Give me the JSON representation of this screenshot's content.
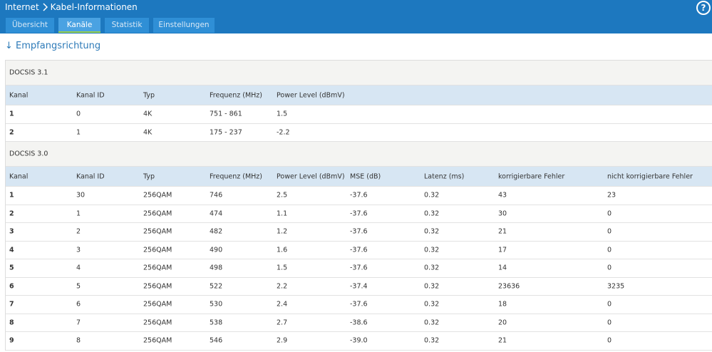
{
  "header": {
    "breadcrumb": [
      "Internet",
      "Kabel-Informationen"
    ],
    "help": "?"
  },
  "tabs": [
    {
      "label": "Übersicht",
      "active": false
    },
    {
      "label": "Kanäle",
      "active": true
    },
    {
      "label": "Statistik",
      "active": false
    },
    {
      "label": "Einstellungen",
      "active": false
    }
  ],
  "section": {
    "title": "Empfangsrichtung"
  },
  "tables": [
    {
      "title": "DOCSIS 3.1",
      "columns": [
        "Kanal",
        "Kanal ID",
        "Typ",
        "Frequenz (MHz)",
        "Power Level (dBmV)"
      ],
      "rows": [
        [
          "1",
          "0",
          "4K",
          "751 - 861",
          "1.5"
        ],
        [
          "2",
          "1",
          "4K",
          "175 - 237",
          "-2.2"
        ]
      ]
    },
    {
      "title": "DOCSIS 3.0",
      "columns": [
        "Kanal",
        "Kanal ID",
        "Typ",
        "Frequenz (MHz)",
        "Power Level (dBmV)",
        "MSE (dB)",
        "Latenz (ms)",
        "korrigierbare Fehler",
        "nicht korrigierbare Fehler"
      ],
      "rows": [
        [
          "1",
          "30",
          "256QAM",
          "746",
          "2.5",
          "-37.6",
          "0.32",
          "43",
          "23"
        ],
        [
          "2",
          "1",
          "256QAM",
          "474",
          "1.1",
          "-37.6",
          "0.32",
          "30",
          "0"
        ],
        [
          "3",
          "2",
          "256QAM",
          "482",
          "1.2",
          "-37.6",
          "0.32",
          "21",
          "0"
        ],
        [
          "4",
          "3",
          "256QAM",
          "490",
          "1.6",
          "-37.6",
          "0.32",
          "17",
          "0"
        ],
        [
          "5",
          "4",
          "256QAM",
          "498",
          "1.5",
          "-37.6",
          "0.32",
          "14",
          "0"
        ],
        [
          "6",
          "5",
          "256QAM",
          "522",
          "2.2",
          "-37.4",
          "0.32",
          "23636",
          "3235"
        ],
        [
          "7",
          "6",
          "256QAM",
          "530",
          "2.4",
          "-37.6",
          "0.32",
          "18",
          "0"
        ],
        [
          "8",
          "7",
          "256QAM",
          "538",
          "2.7",
          "-38.6",
          "0.32",
          "20",
          "0"
        ],
        [
          "9",
          "8",
          "256QAM",
          "546",
          "2.9",
          "-39.0",
          "0.32",
          "21",
          "0"
        ]
      ]
    }
  ]
}
